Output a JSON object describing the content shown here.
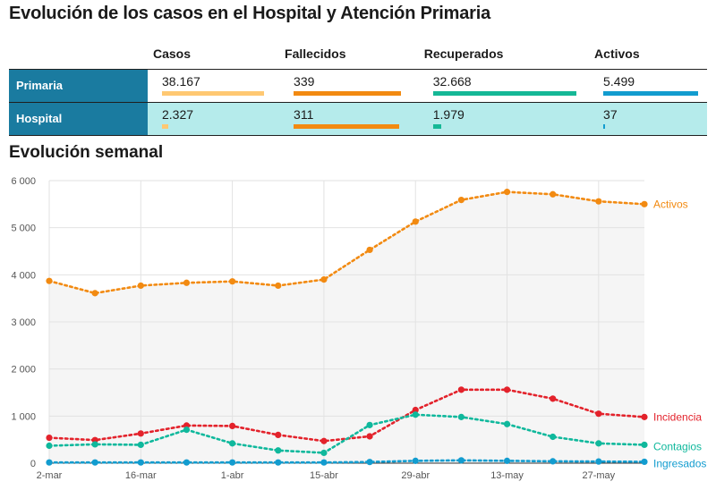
{
  "title": "Evolución de los casos en el Hospital y Atención Primaria",
  "stats_table": {
    "headers": [
      "Casos",
      "Fallecidos",
      "Recuperados",
      "Activos"
    ],
    "rows": [
      {
        "label": "Primaria",
        "values": [
          "38.167",
          "339",
          "32.668",
          "5.499"
        ],
        "fill": [
          0.95,
          1.0,
          1.0,
          1.0
        ]
      },
      {
        "label": "Hospital",
        "values": [
          "2.327",
          "311",
          "1.979",
          "37"
        ],
        "fill": [
          0.06,
          0.92,
          0.06,
          0.01
        ]
      }
    ],
    "bar_colors": [
      "#ffc872",
      "#f28a11",
      "#15b896",
      "#129ccf"
    ]
  },
  "subtitle": "Evolución semanal",
  "chart_data": {
    "type": "line",
    "title": "Evolución semanal",
    "xlabel": "",
    "ylabel": "",
    "ylim": [
      0,
      6000
    ],
    "yticks": [
      0,
      1000,
      2000,
      3000,
      4000,
      5000,
      6000
    ],
    "ytick_labels": [
      "0",
      "1 000",
      "2 000",
      "3 000",
      "4 000",
      "5 000",
      "6 000"
    ],
    "x": [
      "2-mar",
      "9-mar",
      "16-mar",
      "23-mar",
      "1-abr",
      "8-abr",
      "15-abr",
      "22-abr",
      "29-abr",
      "6-may",
      "13-may",
      "20-may",
      "27-may",
      "3-jun"
    ],
    "xtick_labels": [
      "2-mar",
      "",
      "16-mar",
      "",
      "1-abr",
      "",
      "15-abr",
      "",
      "29-abr",
      "",
      "13-may",
      "",
      "27-may",
      ""
    ],
    "grid": true,
    "legend": "inline-right",
    "series": [
      {
        "name": "Activos",
        "color": "#f28a11",
        "values": [
          3870,
          3610,
          3770,
          3830,
          3860,
          3770,
          3900,
          4530,
          5130,
          5590,
          5760,
          5710,
          5560,
          5500
        ],
        "area": true
      },
      {
        "name": "Incidencia",
        "color": "#e3222b",
        "values": [
          540,
          490,
          630,
          800,
          790,
          600,
          470,
          570,
          1130,
          1560,
          1560,
          1370,
          1050,
          980
        ]
      },
      {
        "name": "Contagios",
        "color": "#0fb89c",
        "values": [
          370,
          400,
          390,
          710,
          420,
          270,
          220,
          810,
          1030,
          980,
          830,
          560,
          420,
          390
        ]
      },
      {
        "name": "Ingresados",
        "color": "#129ccf",
        "values": [
          15,
          15,
          15,
          15,
          15,
          15,
          15,
          25,
          50,
          60,
          50,
          40,
          35,
          30
        ]
      }
    ]
  }
}
